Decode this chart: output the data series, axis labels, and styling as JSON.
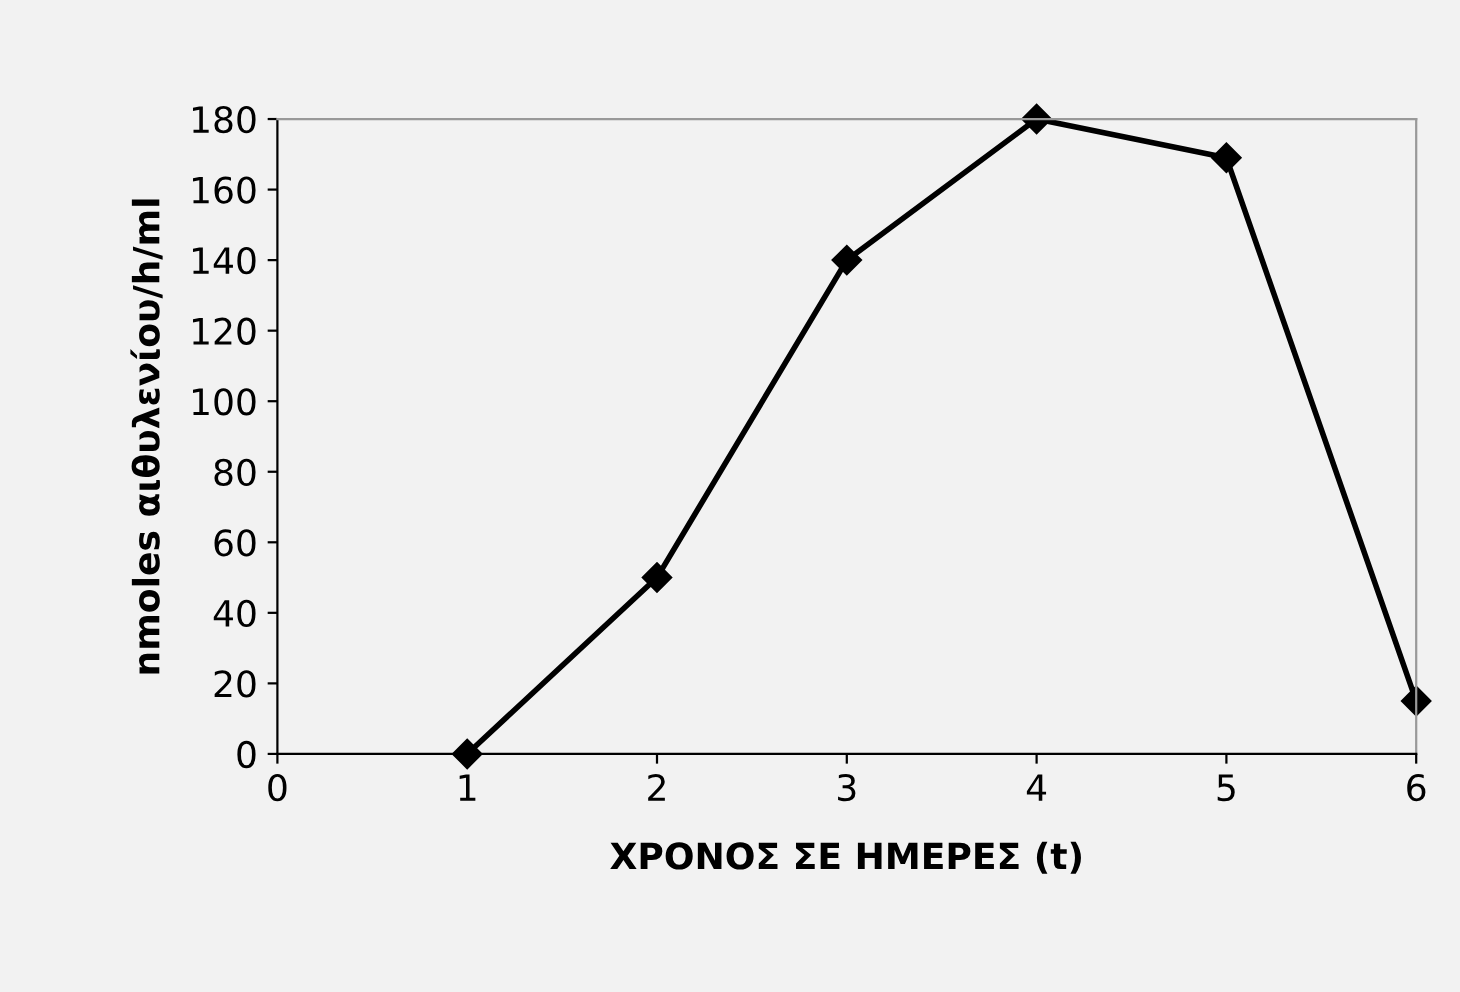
{
  "chart_data": {
    "type": "line",
    "xlabel": "ΧΡΟΝΟΣ ΣΕ ΗΜΕΡΕΣ (t)",
    "ylabel": "nmoles αιθυλενίου/h/ml",
    "x": [
      1,
      2,
      3,
      4,
      5,
      6
    ],
    "series": [
      {
        "color": "#000000",
        "values": [
          0,
          50,
          140,
          180,
          169,
          15
        ]
      }
    ],
    "xlim": [
      0,
      6
    ],
    "xticks": [
      0,
      1,
      2,
      3,
      4,
      5,
      6
    ],
    "ylim": [
      0,
      180
    ],
    "yticks": [
      0,
      20,
      40,
      60,
      80,
      100,
      120,
      140,
      160,
      180
    ],
    "marker": "diamond",
    "line_style": "solid",
    "grid": false,
    "legend": false
  }
}
